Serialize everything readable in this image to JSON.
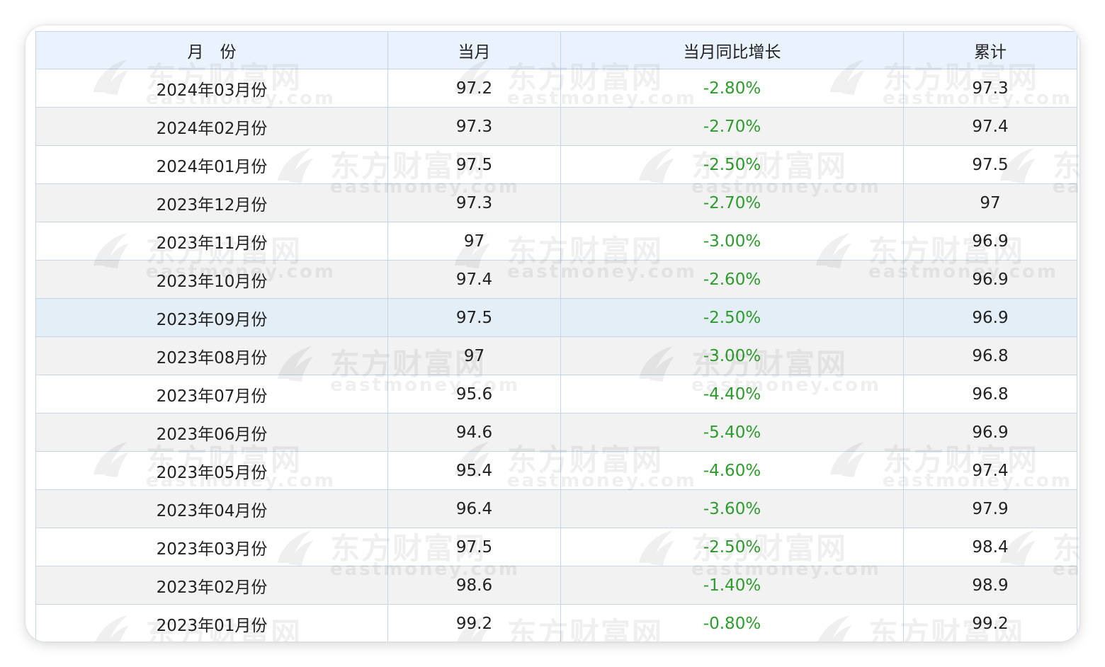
{
  "table": {
    "headers": [
      "月　份",
      "当月",
      "当月同比增长",
      "累计"
    ],
    "rows": [
      {
        "month": "2024年03月份",
        "current": "97.2",
        "yoy": "-2.80%",
        "cumulative": "97.3"
      },
      {
        "month": "2024年02月份",
        "current": "97.3",
        "yoy": "-2.70%",
        "cumulative": "97.4"
      },
      {
        "month": "2024年01月份",
        "current": "97.5",
        "yoy": "-2.50%",
        "cumulative": "97.5"
      },
      {
        "month": "2023年12月份",
        "current": "97.3",
        "yoy": "-2.70%",
        "cumulative": "97"
      },
      {
        "month": "2023年11月份",
        "current": "97",
        "yoy": "-3.00%",
        "cumulative": "96.9"
      },
      {
        "month": "2023年10月份",
        "current": "97.4",
        "yoy": "-2.60%",
        "cumulative": "96.9"
      },
      {
        "month": "2023年09月份",
        "current": "97.5",
        "yoy": "-2.50%",
        "cumulative": "96.9"
      },
      {
        "month": "2023年08月份",
        "current": "97",
        "yoy": "-3.00%",
        "cumulative": "96.8"
      },
      {
        "month": "2023年07月份",
        "current": "95.6",
        "yoy": "-4.40%",
        "cumulative": "96.8"
      },
      {
        "month": "2023年06月份",
        "current": "94.6",
        "yoy": "-5.40%",
        "cumulative": "96.9"
      },
      {
        "month": "2023年05月份",
        "current": "95.4",
        "yoy": "-4.60%",
        "cumulative": "97.4"
      },
      {
        "month": "2023年04月份",
        "current": "96.4",
        "yoy": "-3.60%",
        "cumulative": "97.9"
      },
      {
        "month": "2023年03月份",
        "current": "97.5",
        "yoy": "-2.50%",
        "cumulative": "98.4"
      },
      {
        "month": "2023年02月份",
        "current": "98.6",
        "yoy": "-1.40%",
        "cumulative": "98.9"
      },
      {
        "month": "2023年01月份",
        "current": "99.2",
        "yoy": "-0.80%",
        "cumulative": "99.2"
      }
    ],
    "highlighted_row": 6
  },
  "watermark": {
    "text_cn": "东方财富网",
    "text_en": "eastmoney.com",
    "icon": "eastmoney-logo-icon"
  },
  "colors": {
    "header_bg": "#eaf3fd",
    "border": "#c6d6e8",
    "row_alt_bg": "#f2f2f2",
    "row_highlight_bg": "#e4eef6",
    "negative_pct": "#2c9c2c",
    "text": "#222222"
  }
}
